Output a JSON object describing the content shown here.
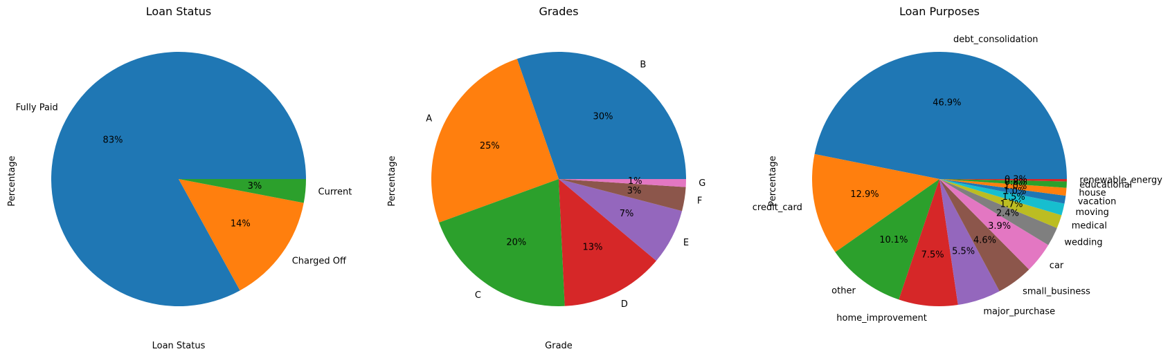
{
  "chart_data": [
    {
      "type": "pie",
      "title": "Loan Status",
      "xlabel": "Loan Status",
      "ylabel": "Percentage",
      "categories": [
        "Fully Paid",
        "Charged Off",
        "Current"
      ],
      "values": [
        83,
        14,
        3
      ],
      "value_labels": [
        "83%",
        "14%",
        "3%"
      ],
      "colors": [
        "#1f77b4",
        "#ff7f0e",
        "#2ca02c"
      ]
    },
    {
      "type": "pie",
      "title": "Grades",
      "xlabel": "Grade",
      "ylabel": "Percentage",
      "categories": [
        "B",
        "A",
        "C",
        "D",
        "E",
        "F",
        "G"
      ],
      "values": [
        30,
        25,
        20,
        13,
        7,
        3,
        1
      ],
      "value_labels": [
        "30%",
        "25%",
        "20%",
        "13%",
        "7%",
        "3%",
        "1%"
      ],
      "colors": [
        "#1f77b4",
        "#ff7f0e",
        "#2ca02c",
        "#d62728",
        "#9467bd",
        "#8c564b",
        "#e377c2"
      ]
    },
    {
      "type": "pie",
      "title": "Loan Purposes",
      "ylabel": "Percentage",
      "categories": [
        "debt_consolidation",
        "credit_card",
        "other",
        "home_improvement",
        "major_purchase",
        "small_business",
        "car",
        "wedding",
        "medical",
        "moving",
        "vacation",
        "house",
        "educational",
        "renewable_energy"
      ],
      "values": [
        46.9,
        12.9,
        10.1,
        7.5,
        5.5,
        4.6,
        3.9,
        2.4,
        1.7,
        1.5,
        1.0,
        1.0,
        0.8,
        0.3
      ],
      "value_labels": [
        "46.9%",
        "12.9%",
        "10.1%",
        "7.5%",
        "5.5%",
        "4.6%",
        "3.9%",
        "2.4%",
        "1.7%",
        "1.5%",
        "1.0%",
        "1.0%",
        "0.8%",
        "0.3%"
      ],
      "colors": [
        "#1f77b4",
        "#ff7f0e",
        "#2ca02c",
        "#d62728",
        "#9467bd",
        "#8c564b",
        "#e377c2",
        "#7f7f7f",
        "#bcbd22",
        "#17becf",
        "#1f77b4",
        "#ff7f0e",
        "#2ca02c",
        "#d62728"
      ]
    }
  ]
}
